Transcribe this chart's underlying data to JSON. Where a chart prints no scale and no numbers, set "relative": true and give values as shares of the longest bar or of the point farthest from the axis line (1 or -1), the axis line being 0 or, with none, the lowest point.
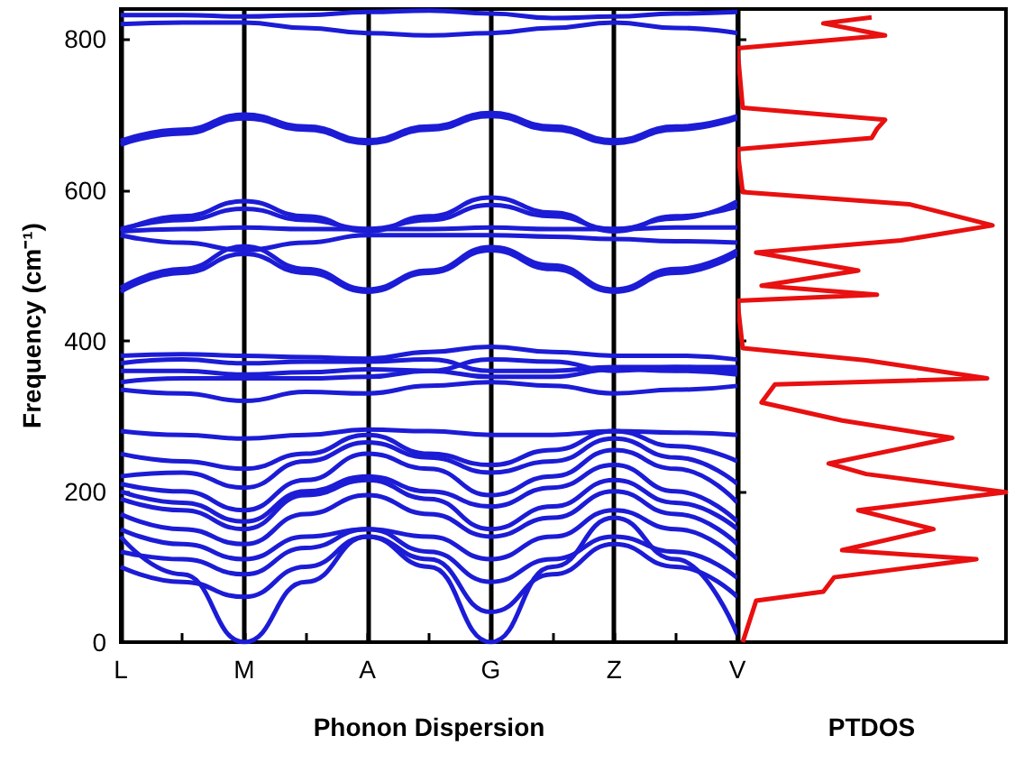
{
  "chart_data": [
    {
      "type": "line",
      "xlabel": "Phonon Dispersion",
      "ylabel": "Frequency (cm⁻¹)",
      "categories": [
        "L",
        null,
        "M",
        null,
        "A",
        null,
        "G",
        null,
        "Z",
        null,
        "V"
      ],
      "ylim": [
        0,
        840
      ],
      "yticks": [
        0,
        200,
        400,
        600,
        800
      ],
      "grid": "x",
      "marker": "none",
      "series": [
        {
          "color": "#1c1cd6",
          "values": [
            820,
            822,
            822,
            815,
            808,
            805,
            808,
            815,
            822,
            815,
            808
          ]
        },
        {
          "color": "#1c1cd6",
          "values": [
            832,
            832,
            830,
            832,
            836,
            838,
            834,
            828,
            830,
            834,
            836
          ]
        },
        {
          "color": "#1c1cd6",
          "values": [
            660,
            675,
            695,
            680,
            662,
            680,
            698,
            680,
            662,
            680,
            695
          ]
        },
        {
          "color": "#1c1cd6",
          "values": [
            665,
            680,
            700,
            684,
            666,
            684,
            702,
            684,
            666,
            684,
            698
          ]
        },
        {
          "color": "#1c1cd6",
          "values": [
            545,
            565,
            585,
            565,
            545,
            565,
            590,
            570,
            545,
            565,
            578
          ]
        },
        {
          "color": "#1c1cd6",
          "values": [
            548,
            560,
            575,
            560,
            548,
            560,
            580,
            565,
            548,
            562,
            585
          ]
        },
        {
          "color": "#1c1cd6",
          "values": [
            545,
            548,
            550,
            548,
            548,
            548,
            550,
            548,
            548,
            550,
            550
          ]
        },
        {
          "color": "#1c1cd6",
          "values": [
            540,
            530,
            520,
            530,
            540,
            540,
            540,
            538,
            535,
            532,
            530
          ]
        },
        {
          "color": "#1c1cd6",
          "values": [
            465,
            490,
            515,
            490,
            465,
            490,
            520,
            495,
            465,
            490,
            515
          ]
        },
        {
          "color": "#1c1cd6",
          "values": [
            470,
            495,
            525,
            495,
            468,
            493,
            524,
            500,
            468,
            495,
            520
          ]
        },
        {
          "color": "#1c1cd6",
          "values": [
            380,
            382,
            380,
            378,
            376,
            385,
            392,
            385,
            380,
            380,
            375
          ]
        },
        {
          "color": "#1c1cd6",
          "values": [
            370,
            375,
            370,
            372,
            372,
            375,
            360,
            360,
            365,
            365,
            360
          ]
        },
        {
          "color": "#1c1cd6",
          "values": [
            360,
            360,
            355,
            358,
            362,
            360,
            352,
            352,
            362,
            360,
            355
          ]
        },
        {
          "color": "#1c1cd6",
          "values": [
            345,
            350,
            350,
            350,
            352,
            360,
            375,
            372,
            360,
            365,
            365
          ]
        },
        {
          "color": "#1c1cd6",
          "values": [
            335,
            330,
            320,
            332,
            330,
            340,
            345,
            340,
            330,
            335,
            340
          ]
        },
        {
          "color": "#1c1cd6",
          "values": [
            280,
            275,
            270,
            275,
            282,
            280,
            275,
            275,
            280,
            278,
            275
          ]
        },
        {
          "color": "#1c1cd6",
          "values": [
            250,
            240,
            230,
            250,
            275,
            250,
            235,
            255,
            280,
            260,
            240
          ]
        },
        {
          "color": "#1c1cd6",
          "values": [
            220,
            225,
            205,
            240,
            265,
            245,
            225,
            240,
            270,
            245,
            210
          ]
        },
        {
          "color": "#1c1cd6",
          "values": [
            210,
            200,
            175,
            215,
            250,
            230,
            195,
            220,
            255,
            230,
            185
          ]
        },
        {
          "color": "#1c1cd6",
          "values": [
            200,
            185,
            160,
            200,
            220,
            200,
            180,
            205,
            235,
            200,
            160
          ]
        },
        {
          "color": "#1c1cd6",
          "values": [
            190,
            175,
            150,
            195,
            215,
            190,
            150,
            180,
            215,
            185,
            150
          ]
        },
        {
          "color": "#1c1cd6",
          "values": [
            170,
            150,
            130,
            170,
            195,
            170,
            140,
            165,
            200,
            170,
            130
          ]
        },
        {
          "color": "#1c1cd6",
          "values": [
            150,
            130,
            110,
            140,
            150,
            140,
            110,
            140,
            175,
            150,
            110
          ]
        },
        {
          "color": "#1c1cd6",
          "values": [
            120,
            110,
            90,
            125,
            150,
            120,
            80,
            110,
            140,
            120,
            85
          ]
        },
        {
          "color": "#1c1cd6",
          "values": [
            100,
            80,
            60,
            100,
            140,
            110,
            40,
            90,
            130,
            100,
            60
          ]
        },
        {
          "color": "#1c1cd6",
          "values": [
            140,
            90,
            0,
            80,
            140,
            100,
            0,
            100,
            165,
            110,
            10
          ]
        }
      ]
    },
    {
      "type": "line",
      "orientation": "horizontal",
      "relative": true,
      "xlabel": "PTDOS",
      "ylim": [
        0,
        840
      ],
      "tick_labels": false,
      "marker": "none",
      "x": [
        0,
        55,
        67,
        86,
        110,
        122,
        150,
        175,
        199,
        223,
        237,
        271,
        294,
        318,
        342,
        350,
        374,
        390,
        453,
        461,
        473,
        493,
        517,
        533,
        553,
        581,
        597,
        654,
        669,
        681,
        693,
        709,
        788,
        805,
        821,
        829
      ],
      "series": [
        {
          "color": "#e81010",
          "values": [
            0.02,
            0.07,
            0.32,
            0.36,
            0.89,
            0.39,
            0.73,
            0.45,
            1,
            0.48,
            0.34,
            0.8,
            0.39,
            0.09,
            0.14,
            0.93,
            0.48,
            0.02,
            0,
            0.52,
            0.09,
            0.45,
            0.07,
            0.61,
            0.95,
            0.64,
            0.02,
            0,
            0.5,
            0.52,
            0.55,
            0.02,
            0,
            0.55,
            0.32,
            0.5
          ]
        }
      ]
    }
  ]
}
